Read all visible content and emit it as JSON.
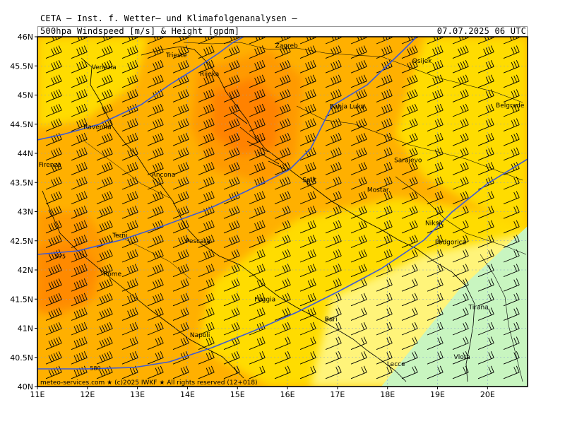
{
  "header": {
    "line1": "CETA — Inst. f. Wetter— und Klimafolgenanalysen —",
    "line2": "500hpa Windspeed [m/s] & Height [gpdm]",
    "valid": "07.07.2025 06 UTC"
  },
  "axes": {
    "lat_labels": [
      "46N",
      "45.5N",
      "45N",
      "44.5N",
      "44N",
      "43.5N",
      "43N",
      "42.5N",
      "42N",
      "41.5N",
      "41N",
      "40.5N",
      "40N"
    ],
    "lat_values": [
      46,
      45.5,
      45,
      44.5,
      44,
      43.5,
      43,
      42.5,
      42,
      41.5,
      41,
      40.5,
      40
    ],
    "lon_labels": [
      "11E",
      "12E",
      "13E",
      "14E",
      "15E",
      "16E",
      "17E",
      "18E",
      "19E",
      "20E"
    ],
    "lon_values": [
      11,
      12,
      13,
      14,
      15,
      16,
      17,
      18,
      19,
      20
    ],
    "lon_range": [
      11,
      20.8
    ],
    "lat_range": [
      40,
      46
    ]
  },
  "cities": [
    {
      "name": "Trieste",
      "lon": 13.78,
      "lat": 45.65
    },
    {
      "name": "Venezia",
      "lon": 12.33,
      "lat": 45.44
    },
    {
      "name": "Zagreb",
      "lon": 15.98,
      "lat": 45.81
    },
    {
      "name": "Osijek",
      "lon": 18.69,
      "lat": 45.55
    },
    {
      "name": "Rijeka",
      "lon": 14.44,
      "lat": 45.33
    },
    {
      "name": "Ravenna",
      "lon": 12.2,
      "lat": 44.42
    },
    {
      "name": "Banja Luka",
      "lon": 17.19,
      "lat": 44.77
    },
    {
      "name": "Belgrade",
      "lon": 20.45,
      "lat": 44.79
    },
    {
      "name": "Firenze",
      "lon": 11.25,
      "lat": 43.77
    },
    {
      "name": "Ancona",
      "lon": 13.52,
      "lat": 43.6
    },
    {
      "name": "Split",
      "lon": 16.44,
      "lat": 43.51
    },
    {
      "name": "Sarajevo",
      "lon": 18.41,
      "lat": 43.85
    },
    {
      "name": "Mostar",
      "lon": 17.81,
      "lat": 43.34
    },
    {
      "name": "Terni",
      "lon": 12.65,
      "lat": 42.56
    },
    {
      "name": "Pescara",
      "lon": 14.21,
      "lat": 42.46
    },
    {
      "name": "Niksic",
      "lon": 18.94,
      "lat": 42.77
    },
    {
      "name": "Podgorica",
      "lon": 19.26,
      "lat": 42.44
    },
    {
      "name": "Rome",
      "lon": 12.5,
      "lat": 41.9
    },
    {
      "name": "Foggia",
      "lon": 15.55,
      "lat": 41.46
    },
    {
      "name": "Bari",
      "lon": 16.87,
      "lat": 41.12
    },
    {
      "name": "Tirana",
      "lon": 19.82,
      "lat": 41.33
    },
    {
      "name": "Napoli",
      "lon": 14.25,
      "lat": 40.85
    },
    {
      "name": "Lecce",
      "lon": 18.17,
      "lat": 40.35
    },
    {
      "name": "Vlora",
      "lon": 19.49,
      "lat": 40.47
    }
  ],
  "contours": [
    {
      "label": "575",
      "label_lon": 11.35,
      "label_lat": 42.2
    },
    {
      "label": "580",
      "label_lon": 12.05,
      "label_lat": 40.28
    }
  ],
  "colors": {
    "wind_low": "#c8f5c0",
    "wind_mid_low": "#fff47a",
    "wind_mid": "#ffdc00",
    "wind_high": "#ffb000",
    "wind_higher": "#ff9a00",
    "wind_max": "#ff8200",
    "contour": "#3d5ad8",
    "grid": "#8aa0d0"
  },
  "footer": "meteo-services.com ★ (c)2025 IWKF ★ All rights reserved (12+018)"
}
